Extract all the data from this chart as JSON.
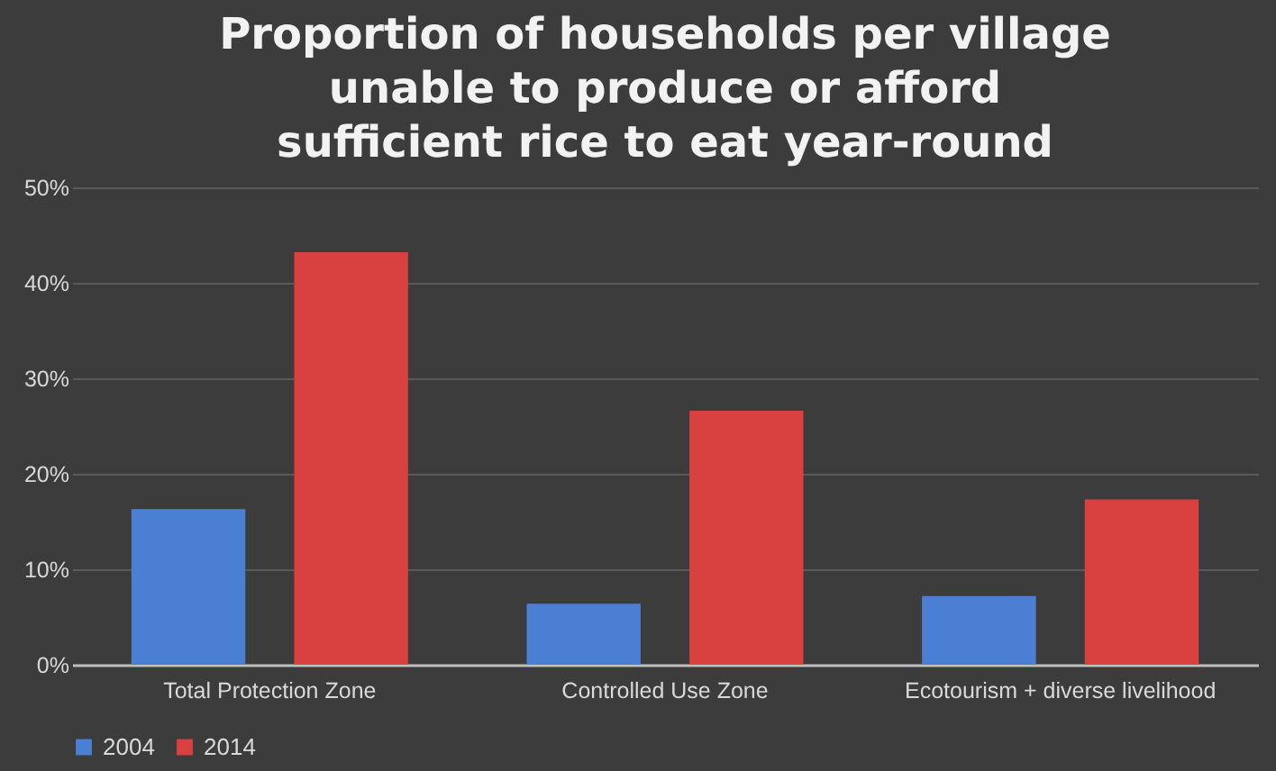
{
  "chart_data": {
    "type": "bar",
    "title": "Proportion of households per village unable to produce or afford sufficient rice to eat year-round",
    "categories": [
      "Total Protection Zone",
      "Controlled Use Zone",
      "Ecotourism + diverse livelihood"
    ],
    "series": [
      {
        "name": "2004",
        "color": "#4a7fd4",
        "values": [
          16.3,
          6.4,
          7.2
        ]
      },
      {
        "name": "2014",
        "color": "#d94040",
        "values": [
          43.2,
          26.6,
          17.3
        ]
      }
    ],
    "ylim": [
      0,
      50
    ],
    "yticks": [
      {
        "value": 0,
        "label": "0%"
      },
      {
        "value": 10,
        "label": "10%"
      },
      {
        "value": 20,
        "label": "20%"
      },
      {
        "value": 30,
        "label": "30%"
      },
      {
        "value": 40,
        "label": "40%"
      },
      {
        "value": 50,
        "label": "50%"
      }
    ],
    "grid": "y",
    "legend": "bottom"
  }
}
